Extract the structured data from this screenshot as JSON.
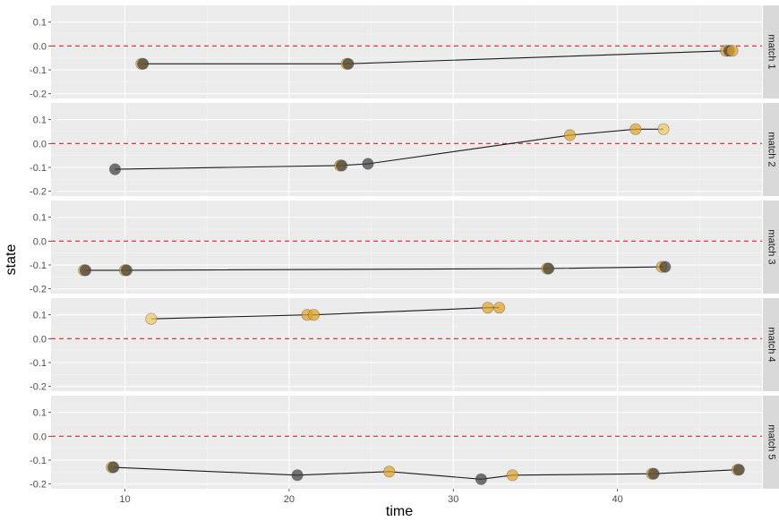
{
  "chart_data": {
    "type": "scatter",
    "xlabel": "time",
    "ylabel": "state",
    "xlim": [
      5.5,
      48.8
    ],
    "ylim": [
      -0.22,
      0.17
    ],
    "x_ticks": [
      10,
      20,
      30,
      40
    ],
    "y_ticks": [
      0.1,
      0.0,
      -0.1,
      -0.2
    ],
    "y_tick_labels": [
      "0.1",
      "0.0",
      "-0.1",
      "-0.2"
    ],
    "reference_line": {
      "y": 0.0,
      "style": "dashed",
      "color": "#e41a1c"
    },
    "facet_layout": "rows",
    "panels": [
      {
        "label": "match 1",
        "line": [
          [
            11.0,
            -0.075
          ],
          [
            23.5,
            -0.075
          ],
          [
            46.8,
            -0.02
          ]
        ],
        "points": [
          {
            "x": 11.0,
            "y": -0.075,
            "kind": "orange"
          },
          {
            "x": 11.1,
            "y": -0.075,
            "kind": "dark"
          },
          {
            "x": 23.5,
            "y": -0.075,
            "kind": "orange"
          },
          {
            "x": 23.6,
            "y": -0.075,
            "kind": "dark"
          },
          {
            "x": 46.6,
            "y": -0.02,
            "kind": "orange"
          },
          {
            "x": 46.8,
            "y": -0.02,
            "kind": "dark"
          },
          {
            "x": 47.0,
            "y": -0.02,
            "kind": "orange"
          }
        ]
      },
      {
        "label": "match 2",
        "line": [
          [
            9.4,
            -0.108
          ],
          [
            23.1,
            -0.092
          ],
          [
            24.8,
            -0.085
          ],
          [
            37.1,
            0.035
          ],
          [
            41.1,
            0.06
          ],
          [
            42.8,
            0.06
          ]
        ],
        "points": [
          {
            "x": 9.4,
            "y": -0.108,
            "kind": "dark"
          },
          {
            "x": 23.1,
            "y": -0.092,
            "kind": "orange"
          },
          {
            "x": 23.2,
            "y": -0.092,
            "kind": "dark"
          },
          {
            "x": 24.8,
            "y": -0.085,
            "kind": "dark"
          },
          {
            "x": 37.1,
            "y": 0.035,
            "kind": "orange"
          },
          {
            "x": 41.1,
            "y": 0.06,
            "kind": "orange"
          },
          {
            "x": 42.8,
            "y": 0.06,
            "kind": "light"
          }
        ]
      },
      {
        "label": "match 3",
        "line": [
          [
            7.5,
            -0.122
          ],
          [
            10.0,
            -0.122
          ],
          [
            35.7,
            -0.115
          ],
          [
            42.8,
            -0.108
          ]
        ],
        "points": [
          {
            "x": 7.5,
            "y": -0.122,
            "kind": "orange"
          },
          {
            "x": 7.6,
            "y": -0.122,
            "kind": "dark"
          },
          {
            "x": 10.0,
            "y": -0.122,
            "kind": "orange"
          },
          {
            "x": 10.1,
            "y": -0.122,
            "kind": "dark"
          },
          {
            "x": 35.7,
            "y": -0.115,
            "kind": "orange"
          },
          {
            "x": 35.8,
            "y": -0.115,
            "kind": "dark"
          },
          {
            "x": 42.7,
            "y": -0.108,
            "kind": "orange"
          },
          {
            "x": 42.9,
            "y": -0.108,
            "kind": "dark"
          }
        ]
      },
      {
        "label": "match 4",
        "line": [
          [
            11.6,
            0.083
          ],
          [
            21.1,
            0.1
          ],
          [
            21.5,
            0.1
          ],
          [
            32.1,
            0.13
          ],
          [
            32.8,
            0.13
          ]
        ],
        "points": [
          {
            "x": 11.6,
            "y": 0.083,
            "kind": "light"
          },
          {
            "x": 21.1,
            "y": 0.1,
            "kind": "orange"
          },
          {
            "x": 21.5,
            "y": 0.1,
            "kind": "orange"
          },
          {
            "x": 32.1,
            "y": 0.13,
            "kind": "orange"
          },
          {
            "x": 32.8,
            "y": 0.13,
            "kind": "orange"
          }
        ]
      },
      {
        "label": "match 5",
        "line": [
          [
            9.2,
            -0.13
          ],
          [
            20.5,
            -0.163
          ],
          [
            26.1,
            -0.148
          ],
          [
            31.7,
            -0.18
          ],
          [
            33.6,
            -0.163
          ],
          [
            42.2,
            -0.157
          ],
          [
            47.3,
            -0.14
          ]
        ],
        "points": [
          {
            "x": 9.2,
            "y": -0.13,
            "kind": "orange"
          },
          {
            "x": 9.3,
            "y": -0.13,
            "kind": "dark"
          },
          {
            "x": 20.5,
            "y": -0.163,
            "kind": "dark"
          },
          {
            "x": 26.1,
            "y": -0.148,
            "kind": "orange"
          },
          {
            "x": 31.7,
            "y": -0.18,
            "kind": "dark"
          },
          {
            "x": 33.6,
            "y": -0.163,
            "kind": "orange"
          },
          {
            "x": 42.1,
            "y": -0.157,
            "kind": "orange"
          },
          {
            "x": 42.2,
            "y": -0.157,
            "kind": "dark"
          },
          {
            "x": 47.3,
            "y": -0.14,
            "kind": "orange"
          },
          {
            "x": 47.4,
            "y": -0.14,
            "kind": "dark"
          }
        ]
      }
    ],
    "colors": {
      "orange": "#E0A224",
      "light": "#F0C860",
      "dark": "#3A3A3A",
      "line": "#1a1a1a",
      "panel": "#EBEBEB",
      "grid_major": "#FFFFFF",
      "grid_minor": "#F5F5F5",
      "strip": "#D9D9D9"
    },
    "grid": true
  }
}
